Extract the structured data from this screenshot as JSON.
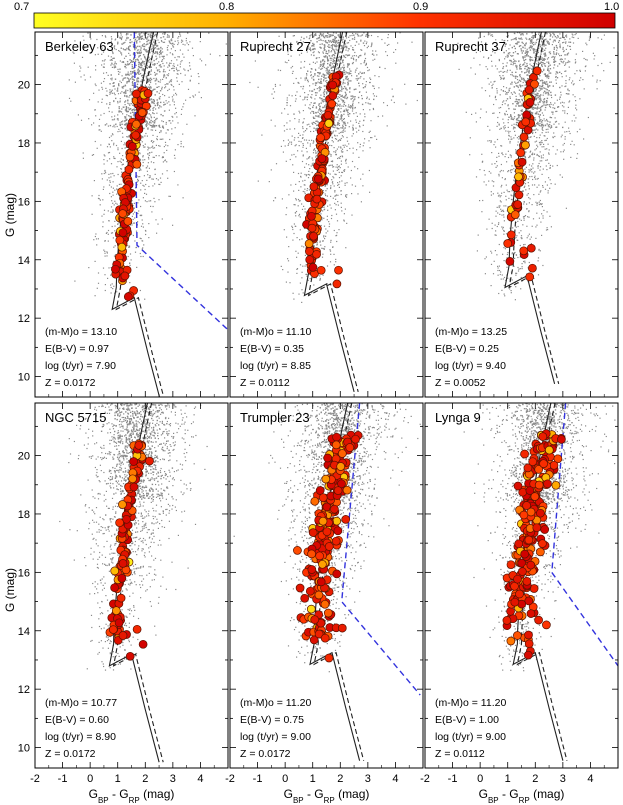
{
  "chart_data": {
    "type": "scatter",
    "figure_description_free": true,
    "colorbar": {
      "ticks": [
        "0.7",
        "0.8",
        "0.9",
        "1.0"
      ],
      "range": [
        0.7,
        1.0
      ],
      "colors": [
        "#ffff00",
        "#ff7f00",
        "#ff0000",
        "#cc0000"
      ]
    },
    "xlabel_main": "G",
    "xlabel_sub1": "BP",
    "xlabel_sep": " - G",
    "xlabel_sub2": "RP",
    "xlabel_unit": " (mag)",
    "ylabel": "G (mag)",
    "xlim": [
      -2,
      5
    ],
    "ylim": [
      21.8,
      9.3
    ],
    "xticks": [
      "-2",
      "-1",
      "0",
      "1",
      "2",
      "3",
      "4"
    ],
    "yticks": [
      "10",
      "12",
      "14",
      "16",
      "18",
      "20"
    ],
    "panels": [
      {
        "name": "Berkeley 63",
        "params": [
          "(m-M)o = 13.10",
          "E(B-V) = 0.97",
          "log (t/yr) = 7.90",
          "Z = 0.0172"
        ],
        "dm": 13.1,
        "ebv": 0.97,
        "logt": 7.9,
        "to_color": 0.9,
        "blue_line": [
          [
            1.6,
            21.8
          ],
          [
            1.7,
            14.5
          ],
          [
            5.0,
            11.6
          ]
        ]
      },
      {
        "name": "Ruprecht 27",
        "params": [
          "(m-M)o = 11.10",
          "E(B-V) = 0.35",
          "log (t/yr) = 8.85",
          "Z = 0.0112"
        ],
        "dm": 11.1,
        "ebv": 0.35,
        "logt": 8.85,
        "to_color": 0.8,
        "blue_line": []
      },
      {
        "name": "Ruprecht 37",
        "params": [
          "(m-M)o = 13.25",
          "E(B-V) = 0.25",
          "log (t/yr) = 9.40",
          "Z = 0.0052"
        ],
        "dm": 13.25,
        "ebv": 0.25,
        "logt": 9.4,
        "to_color": 1.0,
        "blue_line": []
      },
      {
        "name": "NGC 5715",
        "params": [
          "(m-M)o = 10.77",
          "E(B-V) = 0.60",
          "log (t/yr) = 8.90",
          "Z = 0.0172"
        ],
        "dm": 10.77,
        "ebv": 0.6,
        "logt": 8.9,
        "to_color": 0.8,
        "blue_line": []
      },
      {
        "name": "Trumpler 23",
        "params": [
          "(m-M)o = 11.20",
          "E(B-V) = 0.75",
          "log (t/yr) = 9.00",
          "Z = 0.0172"
        ],
        "dm": 11.2,
        "ebv": 0.75,
        "logt": 9.0,
        "to_color": 1.0,
        "blue_line": [
          [
            2.7,
            21.8
          ],
          [
            2.05,
            15.0
          ],
          [
            4.9,
            11.8
          ]
        ]
      },
      {
        "name": "Lynga 9",
        "params": [
          "(m-M)o = 11.20",
          "E(B-V) = 1.00",
          "log (t/yr) = 9.00",
          "Z = 0.0112"
        ],
        "dm": 11.2,
        "ebv": 1.0,
        "logt": 9.0,
        "to_color": 1.3,
        "blue_line": [
          [
            3.1,
            21.8
          ],
          [
            2.6,
            16.0
          ],
          [
            5.0,
            12.8
          ]
        ]
      }
    ]
  }
}
